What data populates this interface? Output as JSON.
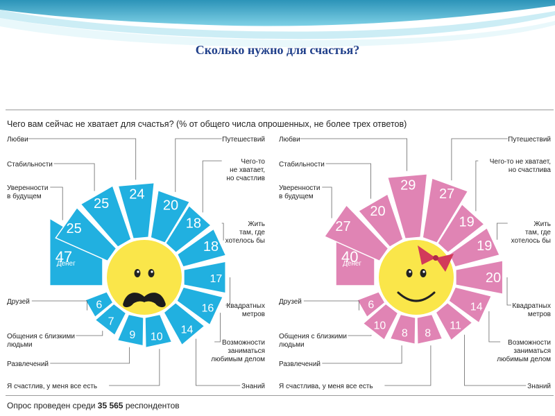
{
  "slide": {
    "title": "Сколько нужно для счастья?"
  },
  "figure": {
    "title": "Чего вам сейчас не хватает для счастья? (% от общего числа опрошенных, не более трех ответов)",
    "note_prefix": "Опрос проведен среди ",
    "note_count": "35 565",
    "note_suffix": " респондентов"
  },
  "colors": {
    "male": "#21b0e0",
    "female": "#e084b4",
    "face": "#fae64a",
    "header_wave": "#3aa6c8"
  },
  "chart_data": [
    {
      "type": "bar",
      "subtype": "radial-sunburst",
      "group": "male",
      "categories": [
        "Денег",
        "Уверенности в будущем",
        "Стабильности",
        "Любви",
        "Путешествий",
        "Чего-то не хватает, но счастлив",
        "Жить там, где хотелось бы",
        "Квадратных метров",
        "Возможности заниматься любимым делом",
        "Знаний",
        "Я счастлив, у меня все есть",
        "Развлечений",
        "Общения с близкими людьми",
        "Друзей"
      ],
      "values": [
        47,
        25,
        25,
        24,
        20,
        18,
        18,
        17,
        16,
        14,
        10,
        9,
        7,
        6
      ],
      "labels": {
        "money": "Денег",
        "left": [
          "Любви",
          "Стабильности",
          "Уверенности\nв будущем",
          "Друзей",
          "Общения с близкими\nлюдьми",
          "Развлечений",
          "Я счастлив, у меня все есть"
        ],
        "right": [
          "Путешествий",
          "Чего-то\nне хватает,\nно счастлив",
          "Жить\nтам, где\nхотелось бы",
          "Квадратных\nметров",
          "Возможности\nзаниматься\nлюбимым делом",
          "Знаний"
        ]
      }
    },
    {
      "type": "bar",
      "subtype": "radial-sunburst",
      "group": "female",
      "categories": [
        "Денег",
        "Уверенности в будущем",
        "Стабильности",
        "Любви",
        "Путешествий",
        "Чего-то не хватает, но счастлива",
        "Жить там, где хотелось бы",
        "Квадратных метров",
        "Возможности заниматься любимым делом",
        "Знаний",
        "Я счастлива, у меня все есть",
        "Развлечений",
        "Общения с близкими людьми",
        "Друзей"
      ],
      "values": [
        40,
        27,
        20,
        29,
        27,
        19,
        19,
        20,
        14,
        11,
        8,
        8,
        10,
        6
      ],
      "labels": {
        "money": "Денег",
        "left": [
          "Любви",
          "Стабильности",
          "Уверенности\nв будущем",
          "Друзей",
          "Общения с близкими\nлюдьми",
          "Развлечений",
          "Я счастлива, у меня все есть"
        ],
        "right": [
          "Путешествий",
          "Чего-то не хватает,\nно счастлива",
          "Жить\nтам, где\nхотелось бы",
          "Квадратных\nметров",
          "Возможности\nзаниматься\nлюбимым делом",
          "Знаний"
        ]
      }
    }
  ]
}
